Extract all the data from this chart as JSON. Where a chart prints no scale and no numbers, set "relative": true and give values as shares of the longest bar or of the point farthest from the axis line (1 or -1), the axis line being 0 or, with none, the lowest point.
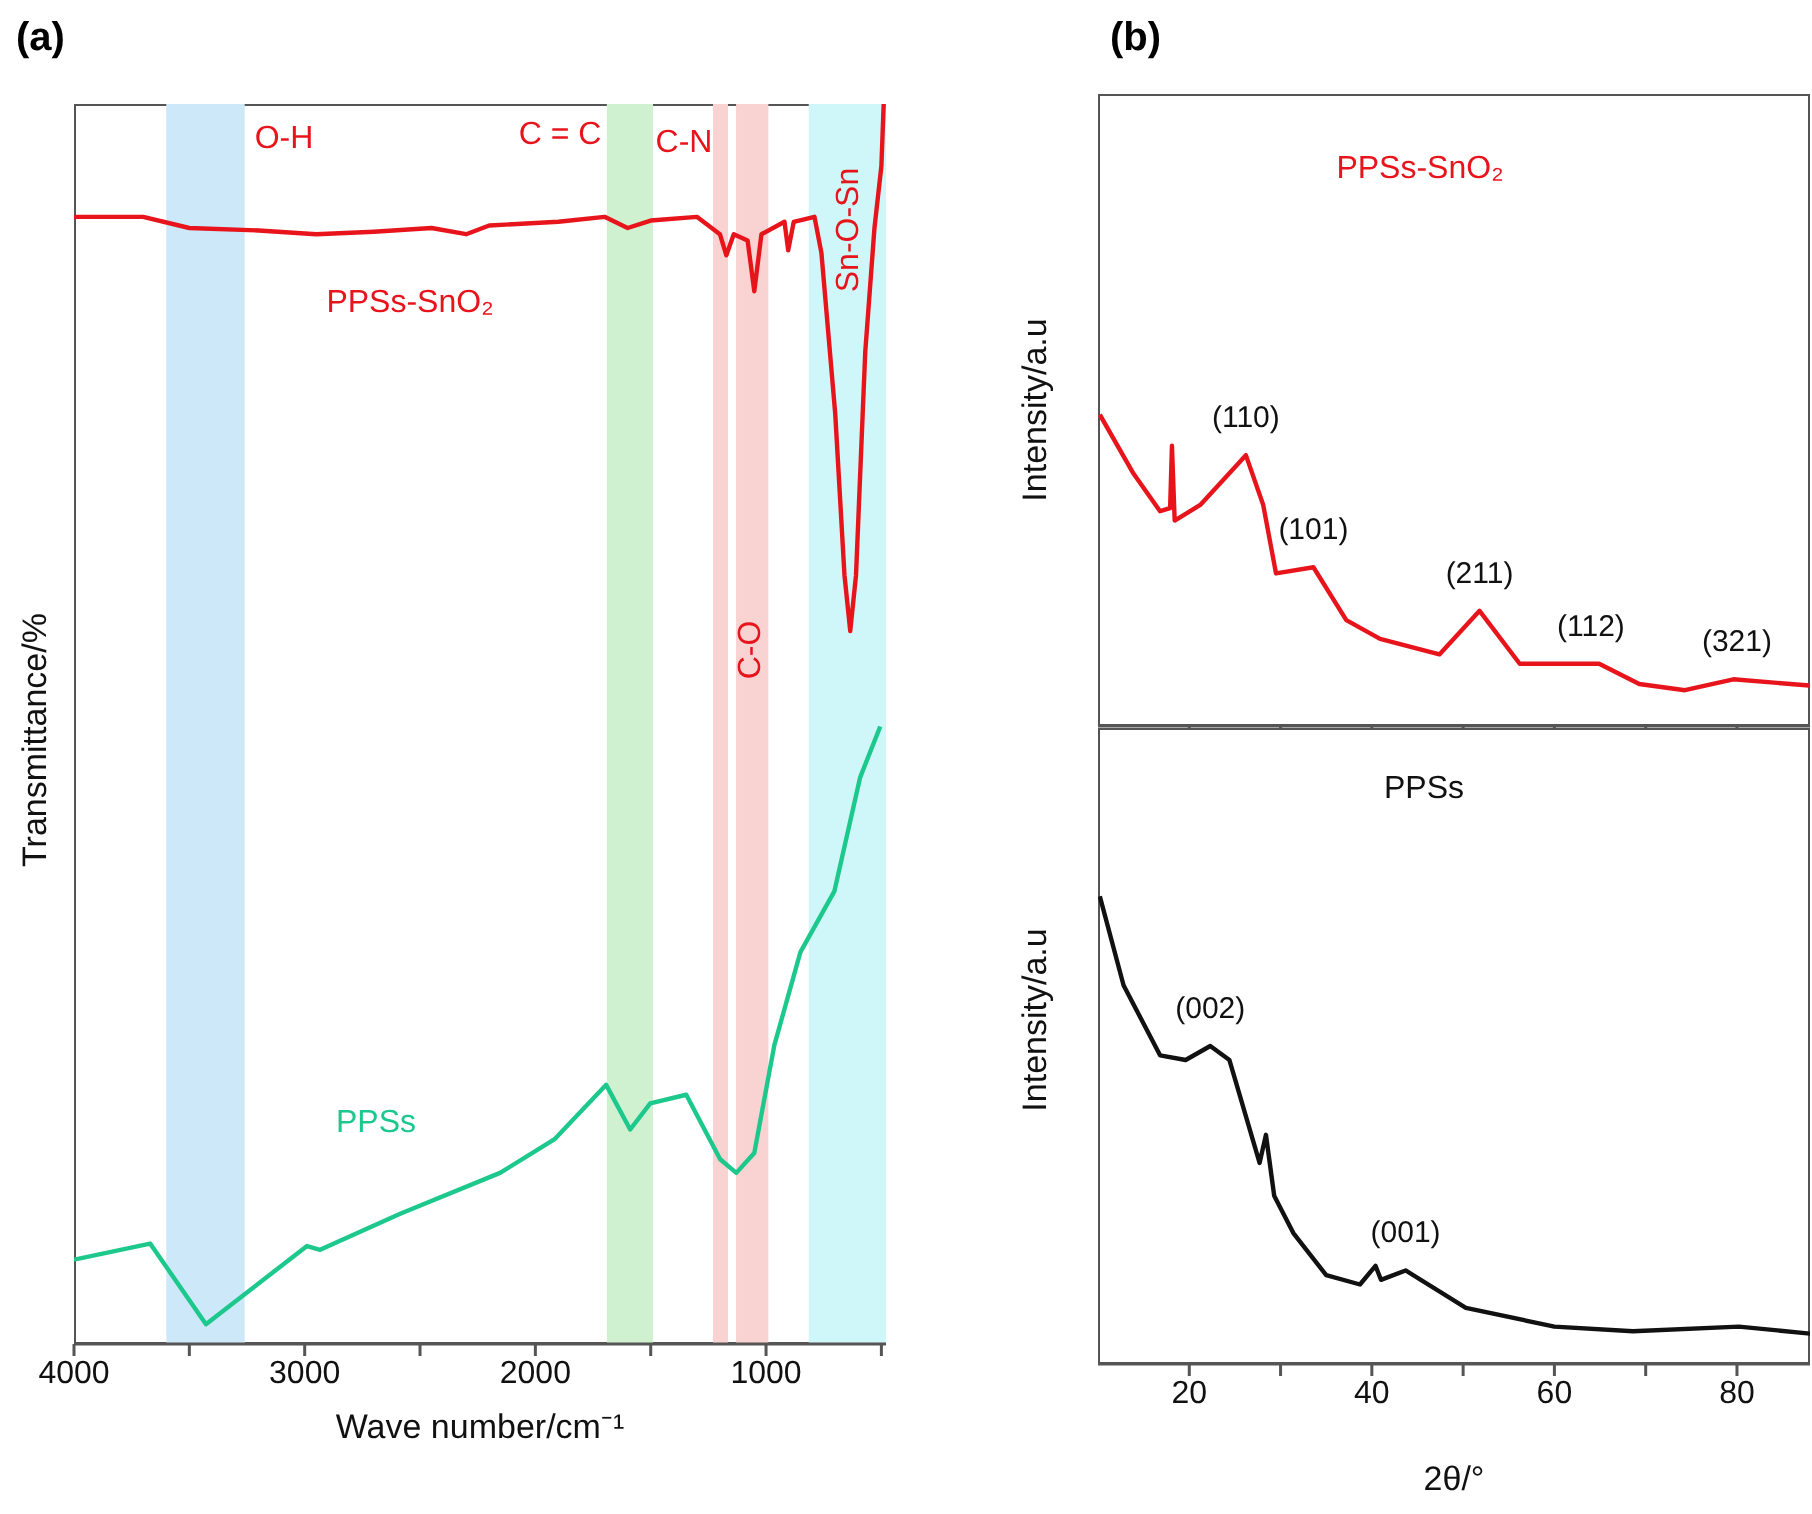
{
  "chart_data": [
    {
      "type": "line",
      "title": "(a)",
      "xlabel": "Wave number/cm⁻¹",
      "ylabel": "Transmittance/%",
      "relative": true,
      "tick_labels": "x",
      "xlim": [
        4000,
        480
      ],
      "xticks": [
        4000,
        {
          "value": 3500,
          "label": null
        },
        3000,
        {
          "value": 2500,
          "label": null
        },
        2000,
        {
          "value": 1500,
          "label": null
        },
        1000,
        {
          "value": 500,
          "label": null
        }
      ],
      "bands": [
        {
          "axis": "x",
          "from": 3600,
          "to": 3260,
          "label": "O-H",
          "color": "#cde8f8"
        },
        {
          "axis": "x",
          "from": 1690,
          "to": 1490,
          "label": "C = C",
          "color": "#cff1cf"
        },
        {
          "axis": "x",
          "from": 1230,
          "to": 1165,
          "label": "C-N",
          "color": "#f9d2d2"
        },
        {
          "axis": "x",
          "from": 1130,
          "to": 990,
          "label": "C-O",
          "color": "#f9d2d2"
        },
        {
          "axis": "x",
          "from": 815,
          "to": 480,
          "label": "Sn-O-Sn",
          "color": "#cff7f9"
        }
      ],
      "series": [
        {
          "name": "PPSs-SnO₂",
          "color": "#e8141c",
          "x": [
            4000,
            3700,
            3500,
            3200,
            2950,
            2700,
            2450,
            2300,
            2200,
            1900,
            1700,
            1600,
            1500,
            1300,
            1200,
            1172,
            1140,
            1080,
            1051,
            1020,
            920,
            904,
            880,
            790,
            760,
            700,
            660,
            635,
            610,
            570,
            530,
            500,
            490
          ],
          "values": [
            0.909,
            0.909,
            0.9,
            0.898,
            0.895,
            0.897,
            0.9,
            0.895,
            0.902,
            0.905,
            0.909,
            0.9,
            0.906,
            0.909,
            0.895,
            0.878,
            0.895,
            0.89,
            0.849,
            0.895,
            0.905,
            0.882,
            0.905,
            0.909,
            0.88,
            0.75,
            0.62,
            0.575,
            0.62,
            0.8,
            0.9,
            0.95,
            1.0
          ]
        },
        {
          "name": "PPSs",
          "color": "#1dc88d",
          "x": [
            4000,
            3670,
            3428,
            2990,
            2933,
            2586,
            2153,
            1918,
            1693,
            1589,
            1502,
            1346,
            1199,
            1129,
            1051,
            964,
            851,
            704,
            592,
            505
          ],
          "values": [
            0.068,
            0.081,
            0.016,
            0.079,
            0.076,
            0.105,
            0.138,
            0.165,
            0.209,
            0.173,
            0.194,
            0.201,
            0.149,
            0.138,
            0.154,
            0.241,
            0.316,
            0.365,
            0.457,
            0.498
          ]
        }
      ]
    },
    {
      "type": "line",
      "title": "(b)",
      "ylabel": "Intensity/a.u",
      "relative": true,
      "tick_labels": false,
      "xlim": [
        10,
        88
      ],
      "xticks": [
        20,
        {
          "value": 30,
          "label": null
        },
        40,
        {
          "value": 50,
          "label": null
        },
        60,
        {
          "value": 70,
          "label": null
        },
        80
      ],
      "annotations": [
        {
          "text": "(110)",
          "x": 26.2,
          "y": 0.87
        },
        {
          "text": "(101)",
          "x": 33.6,
          "y": 0.51
        },
        {
          "text": "(211)",
          "x": 51.8,
          "y": 0.37
        },
        {
          "text": "(112)",
          "x": 64,
          "y": 0.2
        },
        {
          "text": "(321)",
          "x": 80,
          "y": 0.15
        }
      ],
      "series": [
        {
          "name": "PPSs-SnO₂",
          "color": "#e8141c",
          "x": [
            10.2,
            13.9,
            16.8,
            17.9,
            18.1,
            18.4,
            21.2,
            26.2,
            28.1,
            29.5,
            33.6,
            37.2,
            40.9,
            47.4,
            51.8,
            56.2,
            64.9,
            69.3,
            74.3,
            79.6,
            87.9
          ],
          "values": [
            1.0,
            0.81,
            0.69,
            0.7,
            0.9,
            0.66,
            0.71,
            0.87,
            0.71,
            0.49,
            0.51,
            0.34,
            0.28,
            0.23,
            0.37,
            0.2,
            0.2,
            0.135,
            0.115,
            0.15,
            0.13
          ]
        }
      ]
    },
    {
      "type": "line",
      "xlabel": "2θ/°",
      "ylabel": "Intensity/a.u",
      "relative": true,
      "tick_labels": "x",
      "xlim": [
        10,
        88
      ],
      "xticks": [
        20,
        {
          "value": 30,
          "label": null
        },
        40,
        {
          "value": 50,
          "label": null
        },
        60,
        {
          "value": 70,
          "label": null
        },
        80
      ],
      "annotations": [
        {
          "text": "(002)",
          "x": 22.3,
          "y": 0.68
        },
        {
          "text": "(001)",
          "x": 43.7,
          "y": 0.2
        }
      ],
      "series": [
        {
          "name": "PPSs",
          "color": "#111111",
          "x": [
            10.2,
            12.8,
            16.8,
            19.6,
            22.3,
            24.4,
            27.7,
            28.4,
            29.3,
            31.4,
            35.0,
            38.7,
            40.4,
            41.0,
            43.7,
            50.3,
            60.0,
            68.6,
            80.2,
            88
          ],
          "values": [
            1.0,
            0.81,
            0.66,
            0.65,
            0.68,
            0.65,
            0.43,
            0.49,
            0.36,
            0.28,
            0.19,
            0.17,
            0.21,
            0.18,
            0.2,
            0.12,
            0.08,
            0.07,
            0.08,
            0.065
          ]
        }
      ]
    }
  ]
}
